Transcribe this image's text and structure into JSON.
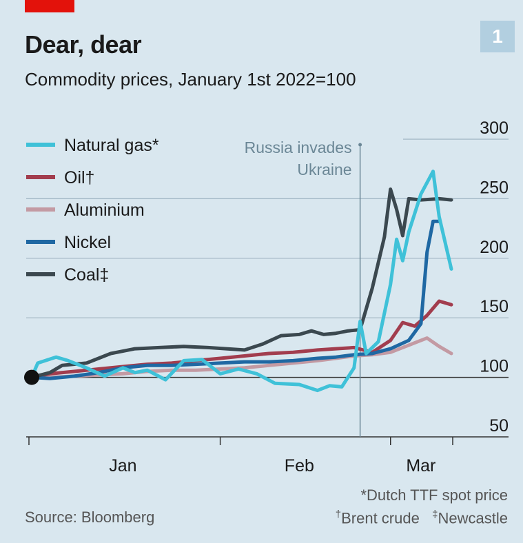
{
  "header": {
    "title": "Dear, dear",
    "subtitle": "Commodity prices, January 1st 2022=100",
    "chart_number": "1"
  },
  "footer": {
    "source": "Source: Bloomberg",
    "note_gas": "*Dutch TTF spot price",
    "note_oil": "Brent crude",
    "note_coal": "Newcastle",
    "dagger": "†",
    "ddagger": "‡"
  },
  "colors": {
    "Natural gas": "#3fc1d8",
    "Oil": "#a23d4e",
    "Aluminium": "#c39aa3",
    "Nickel": "#1f68a3",
    "Coal": "#3b484f",
    "background": "#d9e7ef",
    "brand_red": "#e3120b"
  },
  "chart_data": {
    "type": "line",
    "title": "Dear, dear",
    "subtitle": "Commodity prices, January 1st 2022=100",
    "x_axis": {
      "start": "2022-01-01",
      "end": "2022-03-11",
      "tick_labels": [
        "Jan",
        "Feb",
        "Mar"
      ]
    },
    "y_axis": {
      "range": [
        50,
        300
      ],
      "ticks": [
        50,
        100,
        150,
        200,
        250,
        300
      ],
      "position": "right"
    },
    "grid": "horizontal",
    "legend": {
      "position": "top-left"
    },
    "legend_labels": [
      "Natural gas*",
      "Oil†",
      "Aluminium",
      "Nickel",
      "Coal‡"
    ],
    "annotation": {
      "date": "2022-02-24",
      "text_lines": [
        "Russia invades",
        "Ukraine"
      ]
    },
    "start_marker": {
      "date": "2022-01-01",
      "value": 100
    },
    "series": [
      {
        "name": "Aluminium",
        "points": [
          [
            "2022-01-01",
            100
          ],
          [
            "2022-01-04",
            100
          ],
          [
            "2022-01-08",
            101
          ],
          [
            "2022-01-12",
            102
          ],
          [
            "2022-01-16",
            103
          ],
          [
            "2022-01-20",
            105
          ],
          [
            "2022-01-24",
            106
          ],
          [
            "2022-01-28",
            106
          ],
          [
            "2022-02-01",
            107
          ],
          [
            "2022-02-05",
            108
          ],
          [
            "2022-02-09",
            110
          ],
          [
            "2022-02-13",
            112
          ],
          [
            "2022-02-17",
            114
          ],
          [
            "2022-02-20",
            116
          ],
          [
            "2022-02-23",
            118
          ],
          [
            "2022-02-26",
            119
          ],
          [
            "2022-03-01",
            121
          ],
          [
            "2022-03-04",
            127
          ],
          [
            "2022-03-07",
            133
          ],
          [
            "2022-03-09",
            126
          ],
          [
            "2022-03-11",
            120
          ]
        ]
      },
      {
        "name": "Oil",
        "points": [
          [
            "2022-01-01",
            100
          ],
          [
            "2022-01-04",
            103
          ],
          [
            "2022-01-08",
            105
          ],
          [
            "2022-01-12",
            107
          ],
          [
            "2022-01-16",
            109
          ],
          [
            "2022-01-20",
            111
          ],
          [
            "2022-01-24",
            112
          ],
          [
            "2022-01-28",
            114
          ],
          [
            "2022-02-01",
            116
          ],
          [
            "2022-02-05",
            118
          ],
          [
            "2022-02-09",
            120
          ],
          [
            "2022-02-13",
            121
          ],
          [
            "2022-02-17",
            123
          ],
          [
            "2022-02-20",
            124
          ],
          [
            "2022-02-23",
            125
          ],
          [
            "2022-02-26",
            121
          ],
          [
            "2022-03-01",
            131
          ],
          [
            "2022-03-03",
            146
          ],
          [
            "2022-03-05",
            143
          ],
          [
            "2022-03-07",
            152
          ],
          [
            "2022-03-09",
            164
          ],
          [
            "2022-03-11",
            161
          ]
        ]
      },
      {
        "name": "Nickel",
        "points": [
          [
            "2022-01-01",
            100
          ],
          [
            "2022-01-04",
            99
          ],
          [
            "2022-01-08",
            101
          ],
          [
            "2022-01-12",
            104
          ],
          [
            "2022-01-16",
            108
          ],
          [
            "2022-01-20",
            110
          ],
          [
            "2022-01-24",
            110
          ],
          [
            "2022-01-28",
            111
          ],
          [
            "2022-02-01",
            112
          ],
          [
            "2022-02-05",
            113
          ],
          [
            "2022-02-09",
            113
          ],
          [
            "2022-02-13",
            114
          ],
          [
            "2022-02-17",
            116
          ],
          [
            "2022-02-20",
            117
          ],
          [
            "2022-02-23",
            119
          ],
          [
            "2022-02-26",
            120
          ],
          [
            "2022-03-01",
            124
          ],
          [
            "2022-03-04",
            131
          ],
          [
            "2022-03-06",
            145
          ],
          [
            "2022-03-07",
            205
          ],
          [
            "2022-03-08",
            231
          ],
          [
            "2022-03-09",
            231
          ]
        ]
      },
      {
        "name": "Coal",
        "points": [
          [
            "2022-01-01",
            100
          ],
          [
            "2022-01-04",
            104
          ],
          [
            "2022-01-06",
            110
          ],
          [
            "2022-01-10",
            112
          ],
          [
            "2022-01-14",
            120
          ],
          [
            "2022-01-18",
            124
          ],
          [
            "2022-01-22",
            125
          ],
          [
            "2022-01-26",
            126
          ],
          [
            "2022-01-30",
            125
          ],
          [
            "2022-02-02",
            124
          ],
          [
            "2022-02-05",
            123
          ],
          [
            "2022-02-08",
            128
          ],
          [
            "2022-02-11",
            135
          ],
          [
            "2022-02-14",
            136
          ],
          [
            "2022-02-16",
            139
          ],
          [
            "2022-02-18",
            136
          ],
          [
            "2022-02-20",
            137
          ],
          [
            "2022-02-22",
            139
          ],
          [
            "2022-02-24",
            140
          ],
          [
            "2022-02-26",
            175
          ],
          [
            "2022-02-28",
            218
          ],
          [
            "2022-03-01",
            258
          ],
          [
            "2022-03-02",
            241
          ],
          [
            "2022-03-03",
            219
          ],
          [
            "2022-03-04",
            250
          ],
          [
            "2022-03-06",
            249
          ],
          [
            "2022-03-09",
            250
          ],
          [
            "2022-03-11",
            249
          ]
        ]
      },
      {
        "name": "Natural gas",
        "points": [
          [
            "2022-01-01",
            100
          ],
          [
            "2022-01-02",
            112
          ],
          [
            "2022-01-05",
            117
          ],
          [
            "2022-01-07",
            114
          ],
          [
            "2022-01-10",
            108
          ],
          [
            "2022-01-13",
            101
          ],
          [
            "2022-01-16",
            108
          ],
          [
            "2022-01-18",
            104
          ],
          [
            "2022-01-20",
            106
          ],
          [
            "2022-01-23",
            98
          ],
          [
            "2022-01-26",
            114
          ],
          [
            "2022-01-29",
            115
          ],
          [
            "2022-02-01",
            103
          ],
          [
            "2022-02-04",
            107
          ],
          [
            "2022-02-07",
            103
          ],
          [
            "2022-02-10",
            95
          ],
          [
            "2022-02-14",
            94
          ],
          [
            "2022-02-17",
            89
          ],
          [
            "2022-02-19",
            93
          ],
          [
            "2022-02-21",
            92
          ],
          [
            "2022-02-23",
            108
          ],
          [
            "2022-02-24",
            147
          ],
          [
            "2022-02-25",
            120
          ],
          [
            "2022-02-27",
            130
          ],
          [
            "2022-03-01",
            178
          ],
          [
            "2022-03-02",
            216
          ],
          [
            "2022-03-03",
            198
          ],
          [
            "2022-03-04",
            222
          ],
          [
            "2022-03-06",
            254
          ],
          [
            "2022-03-08",
            273
          ],
          [
            "2022-03-09",
            235
          ],
          [
            "2022-03-11",
            191
          ]
        ]
      }
    ]
  }
}
